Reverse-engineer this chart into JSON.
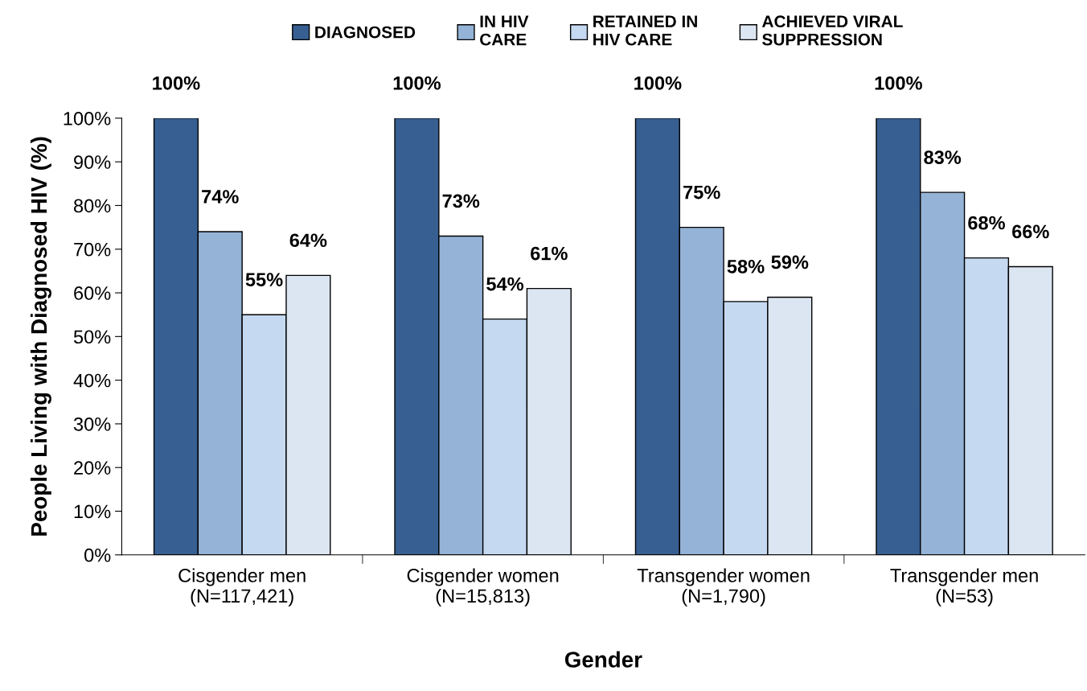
{
  "chart_data": {
    "type": "bar",
    "categories": [
      "Cisgender men\n(N=117,421)",
      "Cisgender women\n(N=15,813)",
      "Transgender women\n(N=1,790)",
      "Transgender men\n(N=53)"
    ],
    "series": [
      {
        "name": "DIAGNOSED",
        "color": "#375f91",
        "values": [
          100,
          100,
          100,
          100
        ],
        "value_labels": [
          "100%",
          "100%",
          "100%",
          "100%"
        ]
      },
      {
        "name": "IN HIV\nCARE",
        "color": "#95b3d7",
        "values": [
          74,
          73,
          75,
          83
        ],
        "value_labels": [
          "74%",
          "73%",
          "75%",
          "83%"
        ]
      },
      {
        "name": "RETAINED IN\nHIV CARE",
        "color": "#c5d9f1",
        "values": [
          55,
          54,
          58,
          68
        ],
        "value_labels": [
          "55%",
          "54%",
          "58%",
          "68%"
        ]
      },
      {
        "name": "ACHIEVED VIRAL\nSUPPRESSION",
        "color": "#dce6f2",
        "values": [
          64,
          61,
          59,
          66
        ],
        "value_labels": [
          "64%",
          "61%",
          "59%",
          "66%"
        ]
      }
    ],
    "xlabel": "Gender",
    "ylabel": "People Living with Diagnosed HIV (%)",
    "ylim": [
      0,
      100
    ],
    "yticks": [
      {
        "value": 0,
        "label": "0%"
      },
      {
        "value": 10,
        "label": "10%"
      },
      {
        "value": 20,
        "label": "20%"
      },
      {
        "value": 30,
        "label": "30%"
      },
      {
        "value": 40,
        "label": "40%"
      },
      {
        "value": 50,
        "label": "50%"
      },
      {
        "value": 60,
        "label": "60%"
      },
      {
        "value": 70,
        "label": "70%"
      },
      {
        "value": 80,
        "label": "80%"
      },
      {
        "value": 90,
        "label": "90%"
      },
      {
        "value": 100,
        "label": "100%"
      }
    ],
    "legend": "top",
    "grid": false
  }
}
